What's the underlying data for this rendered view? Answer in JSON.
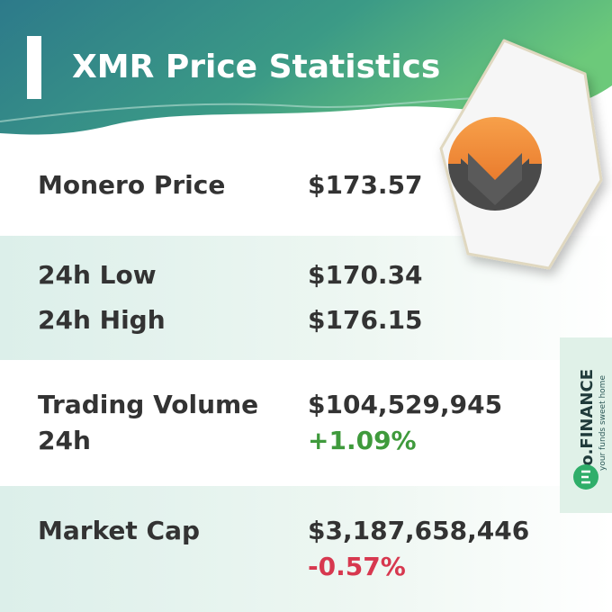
{
  "header": {
    "title": "XMR Price Statistics"
  },
  "sections": [
    {
      "items": [
        {
          "label": "Monero Price",
          "value": "$173.57"
        }
      ]
    },
    {
      "items": [
        {
          "label": "24h Low",
          "value": "$170.34"
        },
        {
          "label": "24h High",
          "value": "$176.15"
        }
      ]
    },
    {
      "items": [
        {
          "label": "Trading Volume 24h",
          "value": "$104,529,945",
          "change": "+1.09%",
          "change_color": "#3f9a3c"
        }
      ]
    },
    {
      "items": [
        {
          "label": "Market Cap",
          "value": "$3,187,658,446",
          "change": "-0.57%",
          "change_color": "#d7384f"
        }
      ]
    }
  ],
  "brand": {
    "name": "eo.FINANCE",
    "tagline": "your funds sweet home"
  }
}
